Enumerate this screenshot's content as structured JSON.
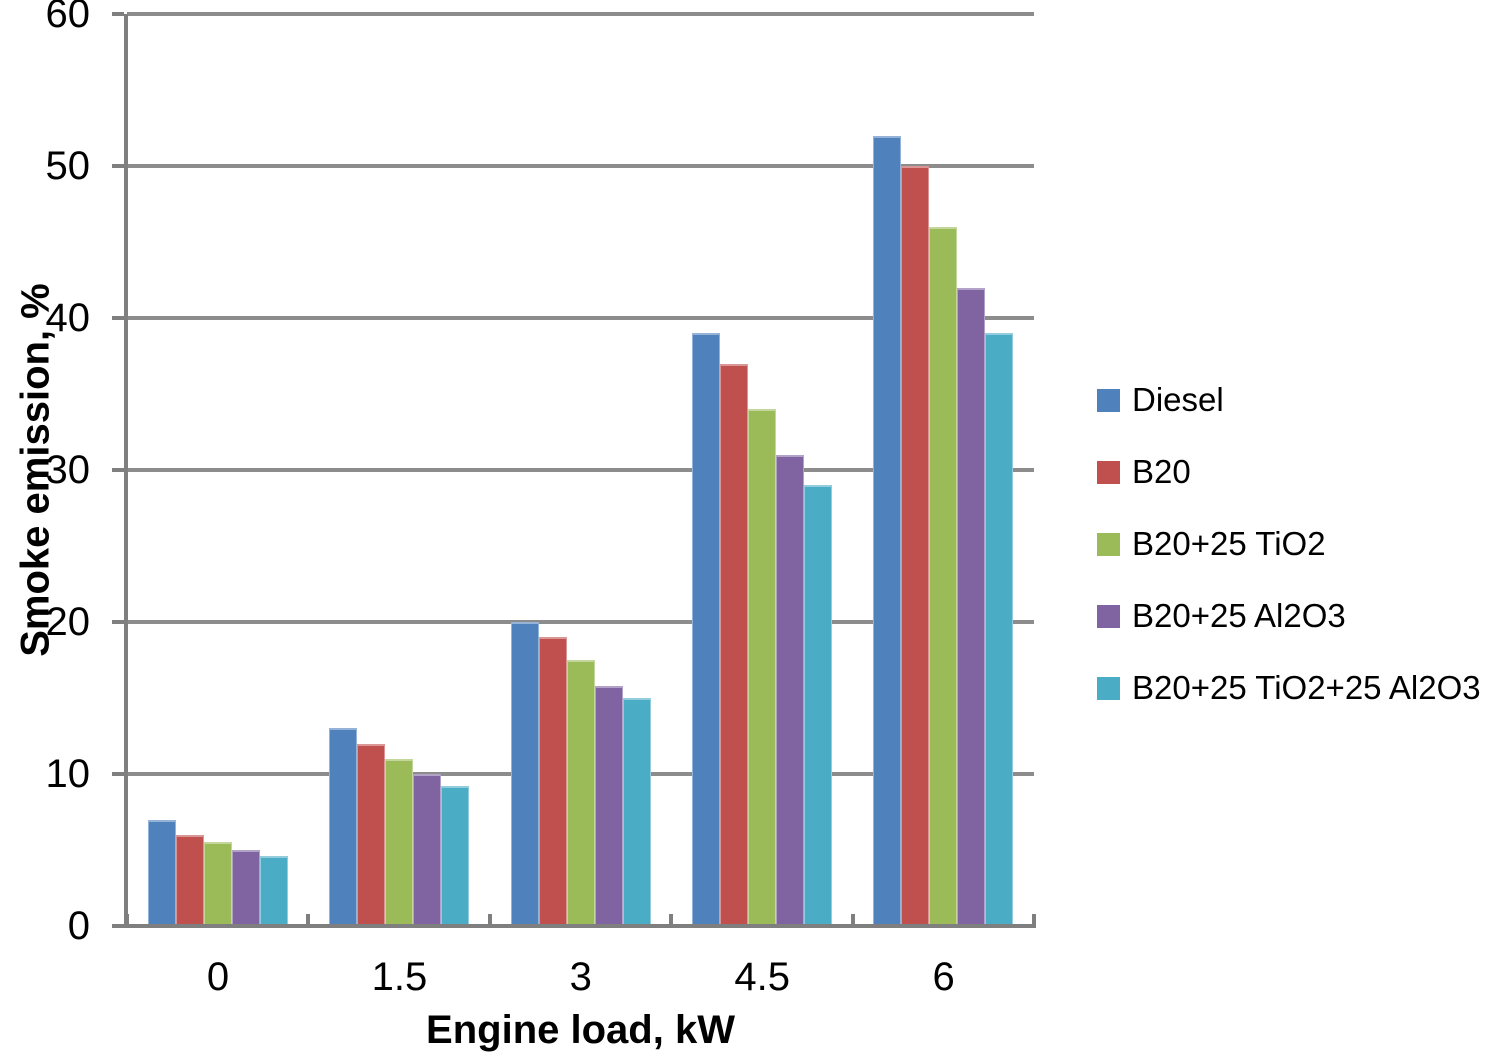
{
  "chart_data": {
    "type": "bar",
    "title": "",
    "xlabel": "Engine load, kW",
    "ylabel": "Smoke emission, %",
    "categories": [
      "0",
      "1.5",
      "3",
      "4.5",
      "6"
    ],
    "series": [
      {
        "name": "Diesel",
        "color": "#4F81BD",
        "edge_color": "#95B3D7",
        "values": [
          7,
          13,
          20,
          39,
          52
        ]
      },
      {
        "name": "B20",
        "color": "#C0504D",
        "edge_color": "#D99694",
        "values": [
          6,
          12,
          19,
          37,
          50
        ]
      },
      {
        "name": "B20+25 TiO2",
        "color": "#9BBB59",
        "edge_color": "#C3D69B",
        "values": [
          5.5,
          11,
          17.5,
          34,
          46
        ]
      },
      {
        "name": "B20+25 Al2O3",
        "color": "#8064A2",
        "edge_color": "#B3A2C7",
        "values": [
          5,
          10,
          15.8,
          31,
          42
        ]
      },
      {
        "name": "B20+25 TiO2+25 Al2O3",
        "color": "#4BACC6",
        "edge_color": "#93CDDD",
        "values": [
          4.6,
          9.2,
          15,
          29,
          39
        ]
      }
    ],
    "ylim": [
      0,
      60
    ],
    "ytick_step": 10,
    "yticks": [
      "0",
      "10",
      "20",
      "30",
      "40",
      "50",
      "60"
    ],
    "grid": true,
    "legend_position": "right",
    "gridline_color": "#8C8C8C",
    "axis_color": "#7F7F7F"
  }
}
